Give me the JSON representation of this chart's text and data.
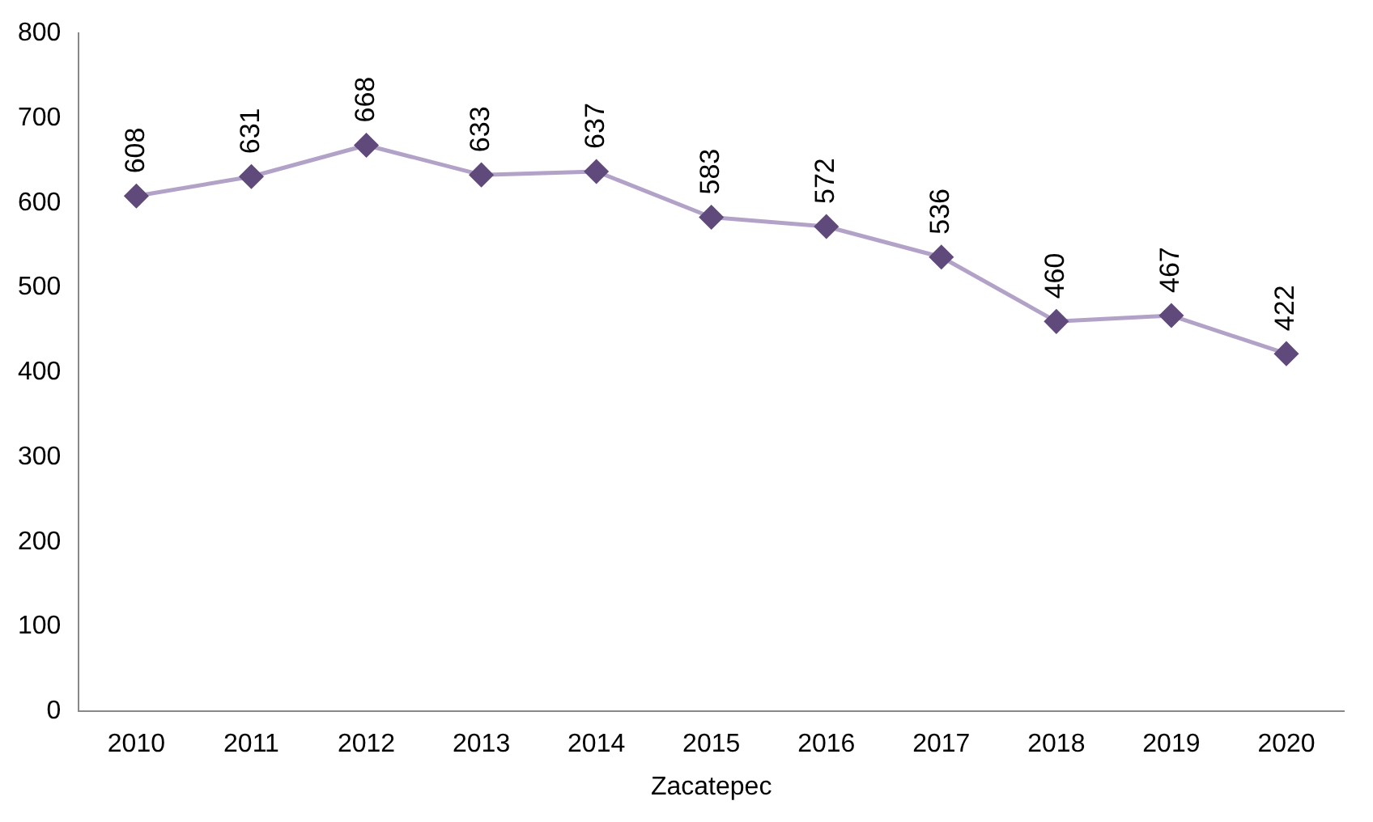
{
  "chart_data": {
    "type": "line",
    "xlabel": "Zacatepec",
    "categories": [
      "2010",
      "2011",
      "2012",
      "2013",
      "2014",
      "2015",
      "2016",
      "2017",
      "2018",
      "2019",
      "2020"
    ],
    "series": [
      {
        "color": "#b3a2c7",
        "colors": [
          "#604a7b",
          "#604a7b",
          "#604a7b",
          "#604a7b",
          "#604a7b",
          "#604a7b",
          "#604a7b",
          "#604a7b",
          "#604a7b",
          "#604a7b",
          "#604a7b"
        ],
        "values": [
          608,
          631,
          668,
          633,
          637,
          583,
          572,
          536,
          460,
          467,
          422
        ]
      }
    ],
    "ylim": [
      0,
      800
    ],
    "yticks": [
      0,
      100,
      200,
      300,
      400,
      500,
      600,
      700,
      800
    ],
    "grid": false,
    "legend": false,
    "marker": "diamond",
    "line_style": "solid",
    "data_labels": true
  }
}
